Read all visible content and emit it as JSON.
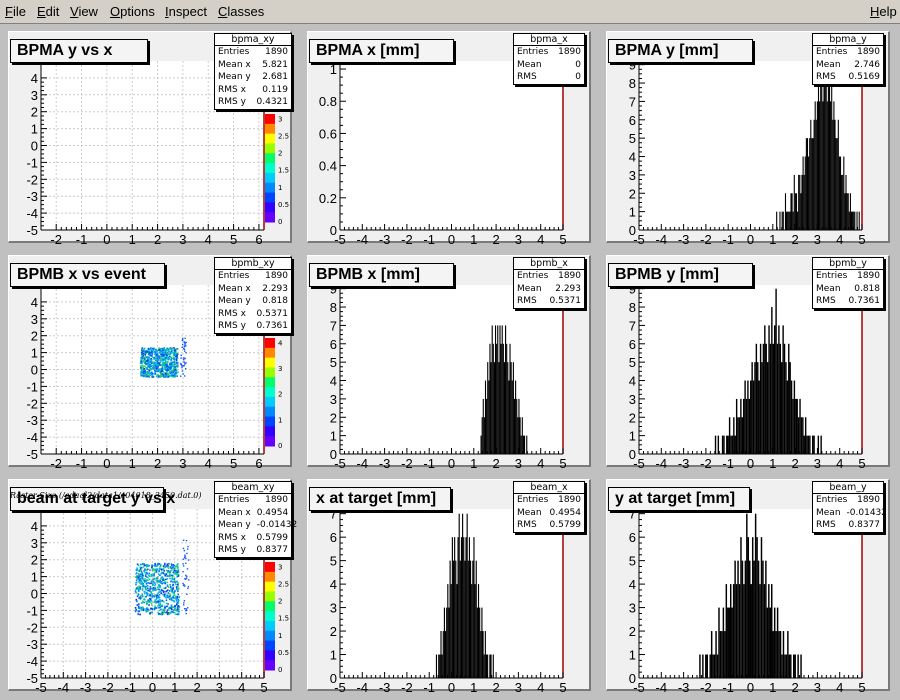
{
  "menubar": {
    "items": [
      {
        "label": "File",
        "u": "F",
        "rest": "ile"
      },
      {
        "label": "Edit",
        "u": "E",
        "rest": "dit"
      },
      {
        "label": "View",
        "u": "V",
        "rest": "iew"
      },
      {
        "label": "Options",
        "u": "O",
        "rest": "ptions"
      },
      {
        "label": "Inspect",
        "u": "I",
        "rest": "nspect"
      },
      {
        "label": "Classes",
        "u": "C",
        "rest": "lasses"
      }
    ],
    "help": {
      "label": "Help",
      "u": "H",
      "rest": "elp"
    }
  },
  "caption": "Raster Size (/adaql2/data1/e04018_3450.dat.0)",
  "colors": {
    "hist_fill": "#000000",
    "frame_right": "#a00000",
    "pad_bg": "#ffffff",
    "grid": "#cccccc"
  },
  "chart_data": [
    {
      "type": "heatmap",
      "title": "BPMA y vs x",
      "name": "bpma_xy",
      "stats": [
        [
          "Entries",
          "1890"
        ],
        [
          "Mean x",
          "5.821"
        ],
        [
          "Mean y",
          "2.681"
        ],
        [
          "RMS x",
          "0.119"
        ],
        [
          "RMS y",
          "0.4321"
        ]
      ],
      "x_ticks": [
        -2,
        -1,
        0,
        1,
        2,
        3,
        4,
        5,
        6
      ],
      "y_ticks": [
        -5,
        -4,
        -3,
        -2,
        -1,
        0,
        1,
        2,
        3,
        4
      ],
      "xlim": [
        -2.6,
        6.2
      ],
      "ylim": [
        -5,
        5
      ],
      "grid": true,
      "palette_ticks": [
        "0",
        "0.5",
        "1",
        "1.5",
        "2",
        "2.5",
        "3"
      ],
      "cluster": null
    },
    {
      "type": "bar",
      "title": "BPMA x [mm]",
      "name": "bpma_x",
      "stats": [
        [
          "Entries",
          "1890"
        ],
        [
          "Mean",
          "0"
        ],
        [
          "RMS",
          "0"
        ]
      ],
      "x_ticks": [
        -5,
        -4,
        -3,
        -2,
        -1,
        0,
        1,
        2,
        3,
        4,
        5
      ],
      "y_ticks": [
        0,
        0.2,
        0.4,
        0.6,
        0.8,
        1
      ],
      "xlim": [
        -5,
        5
      ],
      "ylim": [
        0,
        1.05
      ],
      "grid": false,
      "values": []
    },
    {
      "type": "bar",
      "title": "BPMA y [mm]",
      "name": "bpma_y",
      "stats": [
        [
          "Entries",
          "1890"
        ],
        [
          "Mean",
          "2.746"
        ],
        [
          "RMS",
          "0.5169"
        ]
      ],
      "x_ticks": [
        -5,
        -4,
        -3,
        -2,
        -1,
        0,
        1,
        2,
        3,
        4,
        5
      ],
      "y_ticks": [
        0,
        1,
        2,
        3,
        4,
        5,
        6,
        7,
        8,
        9
      ],
      "xlim": [
        -5,
        5
      ],
      "ylim": [
        0,
        9.2
      ],
      "grid": false,
      "x_range": [
        1.1,
        4.9
      ],
      "values": [
        0,
        1,
        0,
        0,
        1,
        0,
        1,
        1,
        0,
        2,
        1,
        1,
        1,
        1,
        2,
        2,
        1,
        3,
        2,
        2,
        1,
        3,
        3,
        2,
        3,
        4,
        3,
        4,
        5,
        5,
        4,
        5,
        6,
        5,
        5,
        6,
        7,
        6,
        7,
        8,
        7,
        9,
        8,
        7,
        8,
        9,
        8,
        7,
        8,
        8,
        7,
        8,
        6,
        7,
        6,
        5,
        5,
        6,
        4,
        4,
        3,
        3,
        4,
        2,
        3,
        2,
        2,
        1,
        2,
        1,
        1,
        1,
        1,
        0,
        1,
        0,
        1
      ]
    },
    {
      "type": "heatmap",
      "title": "BPMB x vs event",
      "name": "bpmb_xy",
      "stats": [
        [
          "Entries",
          "1890"
        ],
        [
          "Mean x",
          "2.293"
        ],
        [
          "Mean y",
          "0.818"
        ],
        [
          "RMS x",
          "0.5371"
        ],
        [
          "RMS y",
          "0.7361"
        ]
      ],
      "x_ticks": [
        -2,
        -1,
        0,
        1,
        2,
        3,
        4,
        5,
        6
      ],
      "y_ticks": [
        -5,
        -4,
        -3,
        -2,
        -1,
        0,
        1,
        2,
        3,
        4
      ],
      "xlim": [
        -2.6,
        6.2
      ],
      "ylim": [
        -5,
        5
      ],
      "grid": true,
      "palette_ticks": [
        "0",
        "1",
        "2",
        "3",
        "4"
      ],
      "cluster": {
        "x": [
          1.3,
          3.1
        ],
        "y": [
          -0.4,
          2.0
        ]
      }
    },
    {
      "type": "bar",
      "title": "BPMB x [mm]",
      "name": "bpmb_x",
      "stats": [
        [
          "Entries",
          "1890"
        ],
        [
          "Mean",
          "2.293"
        ],
        [
          "RMS",
          "0.5371"
        ]
      ],
      "x_ticks": [
        -5,
        -4,
        -3,
        -2,
        -1,
        0,
        1,
        2,
        3,
        4,
        5
      ],
      "y_ticks": [
        0,
        1,
        2,
        3,
        4,
        5,
        6,
        7,
        8,
        9
      ],
      "xlim": [
        -5,
        5
      ],
      "ylim": [
        0,
        9.2
      ],
      "grid": false,
      "x_range": [
        1.3,
        3.4
      ],
      "values": [
        1,
        2,
        3,
        2,
        4,
        3,
        5,
        4,
        6,
        5,
        7,
        6,
        5,
        7,
        6,
        7,
        5,
        7,
        6,
        7,
        6,
        5,
        7,
        6,
        5,
        4,
        6,
        5,
        4,
        5,
        3,
        4,
        3,
        2,
        3,
        2,
        1,
        2,
        1,
        1,
        0,
        1
      ]
    },
    {
      "type": "bar",
      "title": "BPMB y [mm]",
      "name": "bpmb_y",
      "stats": [
        [
          "Entries",
          "1890"
        ],
        [
          "Mean",
          "0.818"
        ],
        [
          "RMS",
          "0.7361"
        ]
      ],
      "x_ticks": [
        -5,
        -4,
        -3,
        -2,
        -1,
        0,
        1,
        2,
        3,
        4,
        5
      ],
      "y_ticks": [
        0,
        1,
        2,
        3,
        4,
        5,
        6,
        7,
        8,
        9
      ],
      "xlim": [
        -5,
        5
      ],
      "ylim": [
        0,
        9.2
      ],
      "grid": false,
      "x_range": [
        -1.6,
        3.2
      ],
      "values": [
        1,
        0,
        1,
        0,
        0,
        1,
        1,
        0,
        1,
        1,
        2,
        1,
        1,
        2,
        1,
        3,
        2,
        2,
        3,
        2,
        3,
        4,
        3,
        4,
        3,
        4,
        5,
        4,
        5,
        6,
        5,
        4,
        6,
        5,
        6,
        7,
        6,
        5,
        7,
        6,
        8,
        6,
        7,
        9,
        6,
        7,
        6,
        5,
        7,
        6,
        5,
        4,
        6,
        5,
        4,
        3,
        4,
        3,
        3,
        2,
        3,
        2,
        2,
        1,
        2,
        1,
        1,
        1,
        0,
        1,
        1,
        0,
        0,
        1,
        0,
        1
      ]
    },
    {
      "type": "heatmap",
      "title": "beam at target y vs x",
      "name": "beam_xy",
      "stats": [
        [
          "Entries",
          "1890"
        ],
        [
          "Mean x",
          "0.4954"
        ],
        [
          "Mean y",
          "-0.01432"
        ],
        [
          "RMS x",
          "0.5799"
        ],
        [
          "RMS y",
          "0.8377"
        ]
      ],
      "x_ticks": [
        -5,
        -4,
        -3,
        -2,
        -1,
        0,
        1,
        2,
        3,
        4,
        5
      ],
      "y_ticks": [
        -5,
        -4,
        -3,
        -2,
        -1,
        0,
        1,
        2,
        3,
        4
      ],
      "xlim": [
        -5,
        5
      ],
      "ylim": [
        -5,
        5
      ],
      "grid": true,
      "palette_ticks": [
        "0",
        "0.5",
        "1",
        "1.5",
        "2",
        "2.5",
        "3"
      ],
      "cluster": {
        "x": [
          -0.8,
          1.6
        ],
        "y": [
          -1.2,
          3.0
        ]
      }
    },
    {
      "type": "bar",
      "title": "x at target [mm]",
      "name": "beam_x",
      "stats": [
        [
          "Entries",
          "1890"
        ],
        [
          "Mean",
          "0.4954"
        ],
        [
          "RMS",
          "0.5799"
        ]
      ],
      "x_ticks": [
        -5,
        -4,
        -3,
        -2,
        -1,
        0,
        1,
        2,
        3,
        4,
        5
      ],
      "y_ticks": [
        0,
        1,
        2,
        3,
        4,
        5,
        6,
        7
      ],
      "xlim": [
        -5,
        5
      ],
      "ylim": [
        0,
        7.2
      ],
      "grid": false,
      "x_range": [
        -0.7,
        1.9
      ],
      "values": [
        1,
        0,
        1,
        1,
        2,
        1,
        2,
        3,
        2,
        3,
        4,
        3,
        5,
        4,
        6,
        5,
        6,
        5,
        4,
        6,
        7,
        5,
        6,
        7,
        6,
        5,
        6,
        7,
        5,
        6,
        5,
        4,
        5,
        6,
        4,
        5,
        3,
        4,
        3,
        2,
        3,
        2,
        1,
        2,
        1,
        1,
        0,
        1,
        1,
        0,
        1
      ]
    },
    {
      "type": "bar",
      "title": "y at target [mm]",
      "name": "beam_y",
      "stats": [
        [
          "Entries",
          "1890"
        ],
        [
          "Mean",
          "-0.01432"
        ],
        [
          "RMS",
          "0.8377"
        ]
      ],
      "x_ticks": [
        -5,
        -4,
        -3,
        -2,
        -1,
        0,
        1,
        2,
        3,
        4,
        5
      ],
      "y_ticks": [
        0,
        1,
        2,
        3,
        4,
        5,
        6,
        7
      ],
      "xlim": [
        -5,
        5
      ],
      "ylim": [
        0,
        7.2
      ],
      "grid": false,
      "x_range": [
        -2.3,
        2.3
      ],
      "values": [
        1,
        0,
        1,
        0,
        1,
        1,
        0,
        1,
        2,
        1,
        1,
        2,
        1,
        3,
        2,
        2,
        3,
        2,
        4,
        3,
        3,
        4,
        3,
        4,
        5,
        4,
        5,
        4,
        6,
        5,
        4,
        5,
        7,
        6,
        5,
        4,
        6,
        5,
        7,
        6,
        5,
        4,
        6,
        5,
        4,
        5,
        3,
        4,
        3,
        4,
        2,
        3,
        2,
        3,
        2,
        2,
        1,
        2,
        1,
        1,
        2,
        1,
        1,
        0,
        1,
        1,
        0,
        1,
        0,
        1
      ]
    }
  ]
}
